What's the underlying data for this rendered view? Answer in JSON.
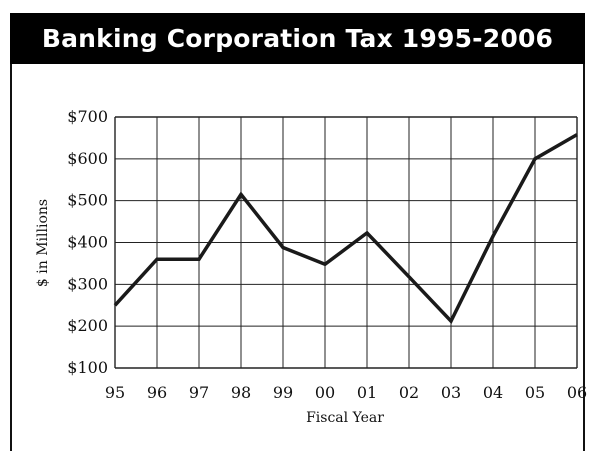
{
  "chart_data": {
    "type": "line",
    "title": "Banking Corporation Tax 1995-2006",
    "xlabel": "Fiscal Year",
    "ylabel": "$ in Millions",
    "categories": [
      "95",
      "96",
      "97",
      "98",
      "99",
      "00",
      "01",
      "02",
      "03",
      "04",
      "05",
      "06"
    ],
    "y_tick_labels": [
      "$100",
      "$200",
      "$300",
      "$400",
      "$500",
      "$600",
      "$700"
    ],
    "y_ticks": [
      100,
      200,
      300,
      400,
      500,
      600,
      700
    ],
    "ylim": [
      100,
      700
    ],
    "grid": true,
    "series": [
      {
        "values": [
          250,
          360,
          360,
          515,
          388,
          348,
          423,
          318,
          212,
          415,
          600,
          658
        ]
      }
    ],
    "colors": {
      "line": "#1a1a1a",
      "grid": "#222222",
      "header_bg": "#000000",
      "header_text": "#ffffff"
    }
  }
}
